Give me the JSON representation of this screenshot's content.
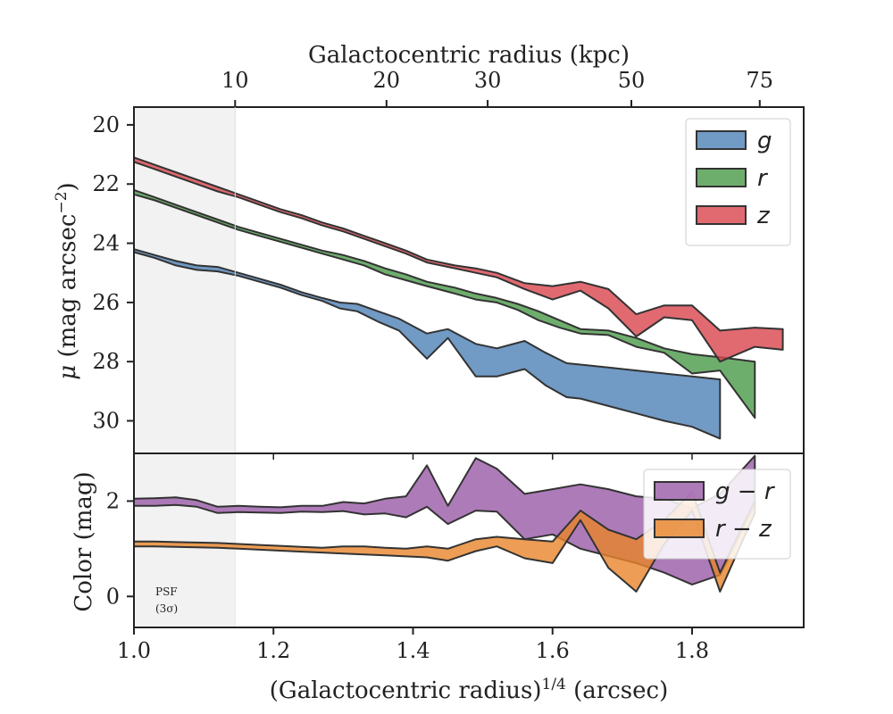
{
  "chart_data": [
    {
      "type": "area",
      "panel": "profile",
      "xlabel": "(Galactocentric radius)^{1/4} (arcsec)",
      "ylabel": "μ (mag arcsec⁻²)",
      "top_xlabel": "Galactocentric radius (kpc)",
      "top_ticks": [
        {
          "kpc": 10,
          "x": 1.145
        },
        {
          "kpc": 20,
          "x": 1.362
        },
        {
          "kpc": 30,
          "x": 1.507
        },
        {
          "kpc": 50,
          "x": 1.713
        },
        {
          "kpc": 75,
          "x": 1.897
        }
      ],
      "xlim": [
        1.0,
        1.96
      ],
      "ylim": [
        31.1,
        19.4
      ],
      "yticks": [
        20,
        22,
        24,
        26,
        28,
        30
      ],
      "legend": "top-right",
      "psf_region_x": [
        1.0,
        1.145
      ],
      "series": [
        {
          "name": "g",
          "color": "#4e81b5",
          "x": [
            1.0,
            1.03,
            1.06,
            1.09,
            1.12,
            1.15,
            1.18,
            1.21,
            1.24,
            1.27,
            1.295,
            1.32,
            1.35,
            1.38,
            1.42,
            1.45,
            1.49,
            1.52,
            1.56,
            1.59,
            1.62,
            1.64,
            1.68,
            1.72,
            1.76,
            1.8,
            1.84
          ],
          "lower": [
            24.2,
            24.4,
            24.6,
            24.75,
            24.8,
            25.0,
            25.2,
            25.4,
            25.65,
            25.85,
            26.0,
            26.05,
            26.3,
            26.55,
            27.05,
            26.9,
            27.4,
            27.55,
            27.3,
            27.7,
            28.05,
            28.1,
            28.2,
            28.3,
            28.4,
            28.5,
            28.6
          ],
          "upper": [
            24.3,
            24.5,
            24.75,
            24.9,
            24.95,
            25.1,
            25.3,
            25.5,
            25.75,
            25.95,
            26.2,
            26.3,
            26.65,
            26.95,
            27.9,
            27.2,
            28.5,
            28.5,
            28.25,
            28.8,
            29.2,
            29.25,
            29.5,
            29.75,
            30.0,
            30.2,
            30.6
          ]
        },
        {
          "name": "r",
          "color": "#4a9a48",
          "x": [
            1.0,
            1.03,
            1.06,
            1.09,
            1.12,
            1.15,
            1.18,
            1.21,
            1.24,
            1.27,
            1.3,
            1.33,
            1.36,
            1.39,
            1.42,
            1.46,
            1.49,
            1.52,
            1.55,
            1.58,
            1.61,
            1.64,
            1.68,
            1.72,
            1.76,
            1.8,
            1.84,
            1.89
          ],
          "lower": [
            22.2,
            22.45,
            22.7,
            22.95,
            23.2,
            23.45,
            23.65,
            23.85,
            24.05,
            24.25,
            24.4,
            24.6,
            24.85,
            25.05,
            25.3,
            25.5,
            25.7,
            25.85,
            26.05,
            26.3,
            26.6,
            26.9,
            26.95,
            27.2,
            27.55,
            27.75,
            27.85,
            28.0
          ],
          "upper": [
            22.35,
            22.55,
            22.8,
            23.05,
            23.3,
            23.55,
            23.75,
            23.95,
            24.15,
            24.35,
            24.55,
            24.75,
            25.05,
            25.25,
            25.45,
            25.7,
            25.9,
            26.0,
            26.25,
            26.6,
            26.85,
            27.05,
            27.1,
            27.5,
            27.7,
            28.4,
            28.3,
            29.9
          ]
        },
        {
          "name": "z",
          "color": "#d9454d",
          "x": [
            1.0,
            1.03,
            1.06,
            1.09,
            1.12,
            1.15,
            1.18,
            1.21,
            1.24,
            1.27,
            1.3,
            1.33,
            1.36,
            1.39,
            1.42,
            1.46,
            1.49,
            1.52,
            1.56,
            1.6,
            1.64,
            1.68,
            1.72,
            1.76,
            1.8,
            1.84,
            1.89,
            1.93
          ],
          "lower": [
            21.1,
            21.35,
            21.6,
            21.85,
            22.1,
            22.35,
            22.6,
            22.85,
            23.05,
            23.3,
            23.5,
            23.75,
            24.0,
            24.25,
            24.55,
            24.75,
            24.85,
            25.0,
            25.35,
            25.45,
            25.3,
            25.55,
            26.4,
            26.1,
            26.1,
            26.95,
            26.85,
            26.9
          ],
          "upper": [
            21.25,
            21.5,
            21.75,
            22.0,
            22.25,
            22.45,
            22.7,
            22.95,
            23.15,
            23.4,
            23.6,
            23.85,
            24.1,
            24.35,
            24.65,
            24.85,
            25.0,
            25.15,
            25.55,
            25.9,
            25.6,
            26.2,
            27.15,
            26.5,
            26.6,
            28.0,
            27.5,
            27.6
          ]
        }
      ]
    },
    {
      "type": "area",
      "panel": "color",
      "xlabel": "(Galactocentric radius)^{1/4} (arcsec)",
      "ylabel": "Color (mag)",
      "xlim": [
        1.0,
        1.96
      ],
      "ylim": [
        -0.65,
        3.0
      ],
      "yticks": [
        0,
        2
      ],
      "xticks": [
        1.0,
        1.2,
        1.4,
        1.6,
        1.8
      ],
      "legend": "top-right",
      "psf_label": [
        "PSF",
        "(3σ)"
      ],
      "series": [
        {
          "name": "g − r",
          "color": "#9a5aa8",
          "x": [
            1.0,
            1.03,
            1.06,
            1.09,
            1.12,
            1.15,
            1.18,
            1.21,
            1.24,
            1.27,
            1.3,
            1.33,
            1.36,
            1.39,
            1.42,
            1.45,
            1.49,
            1.52,
            1.56,
            1.6,
            1.64,
            1.68,
            1.72,
            1.76,
            1.8,
            1.84,
            1.89
          ],
          "lower": [
            1.9,
            1.9,
            1.92,
            1.88,
            1.75,
            1.77,
            1.76,
            1.75,
            1.78,
            1.77,
            1.79,
            1.72,
            1.74,
            1.66,
            1.88,
            1.52,
            1.8,
            1.78,
            1.2,
            1.3,
            1.0,
            0.85,
            0.7,
            0.5,
            0.25,
            0.45,
            1.9
          ],
          "upper": [
            2.05,
            2.06,
            2.08,
            2.02,
            1.88,
            1.9,
            1.88,
            1.87,
            1.9,
            1.9,
            1.98,
            1.95,
            2.05,
            2.1,
            2.75,
            1.9,
            2.9,
            2.68,
            2.15,
            2.25,
            2.35,
            2.25,
            2.1,
            2.05,
            1.85,
            2.15,
            2.95
          ]
        },
        {
          "name": "r − z",
          "color": "#e8852a",
          "x": [
            1.0,
            1.03,
            1.06,
            1.09,
            1.12,
            1.15,
            1.18,
            1.21,
            1.24,
            1.27,
            1.3,
            1.33,
            1.36,
            1.39,
            1.42,
            1.45,
            1.49,
            1.52,
            1.56,
            1.6,
            1.64,
            1.68,
            1.72,
            1.76,
            1.8,
            1.84,
            1.89
          ],
          "lower": [
            1.05,
            1.05,
            1.04,
            1.03,
            1.02,
            1.0,
            0.98,
            0.96,
            0.94,
            0.92,
            0.9,
            0.88,
            0.86,
            0.84,
            0.82,
            0.75,
            0.95,
            1.05,
            0.8,
            0.7,
            1.6,
            0.6,
            0.1,
            1.1,
            1.8,
            0.1,
            1.75
          ],
          "upper": [
            1.15,
            1.15,
            1.14,
            1.13,
            1.12,
            1.1,
            1.08,
            1.06,
            1.04,
            1.02,
            1.05,
            1.05,
            1.02,
            1.0,
            1.05,
            1.0,
            1.2,
            1.25,
            1.2,
            1.15,
            1.8,
            1.4,
            1.2,
            1.6,
            2.2,
            0.5,
            2.0
          ]
        }
      ]
    }
  ],
  "labels": {
    "top_axis_title": "Galactocentric radius (kpc)",
    "bottom_axis_title_pre": "(Galactocentric radius)",
    "bottom_axis_title_sup": "1/4",
    "bottom_axis_title_post": " (arcsec)",
    "y_top_mu": "μ",
    "y_top_rest": " (mag arcsec",
    "y_top_sup": "−2",
    "y_top_close": ")",
    "y_bottom": "Color (mag)",
    "psf_line1": "PSF",
    "psf_line2": "(3σ)"
  }
}
